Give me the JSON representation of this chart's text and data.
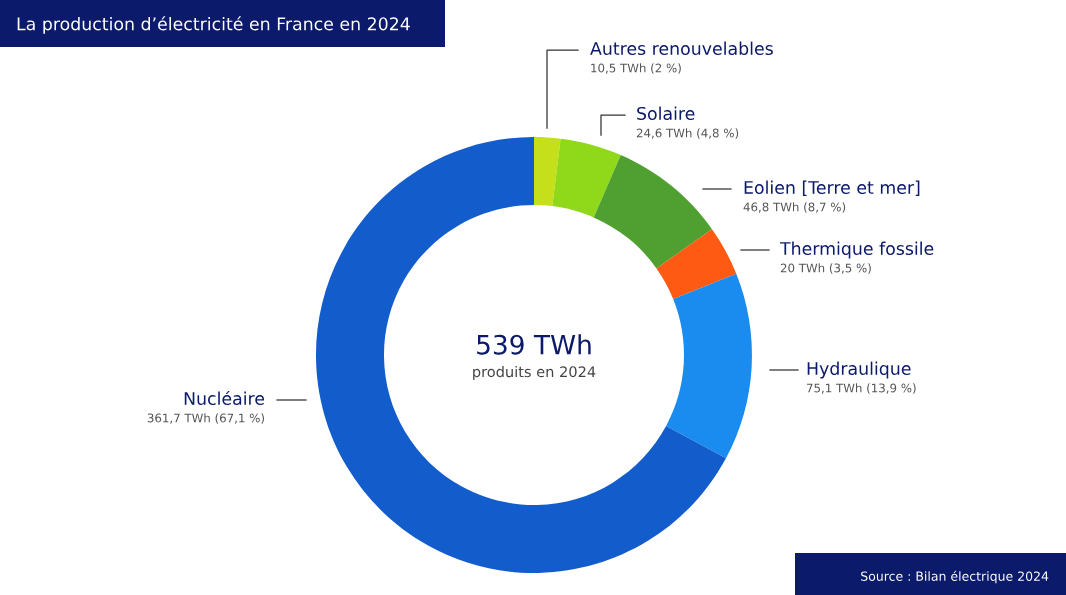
{
  "chart_data": {
    "type": "donut",
    "title": "La production d’électricité en France en 2024",
    "categories": [
      "Autres renouvelables",
      "Solaire",
      "Eolien [Terre et mer]",
      "Thermique fossile",
      "Hydraulique",
      "Nucléaire"
    ],
    "values": [
      10.5,
      24.6,
      46.8,
      20,
      75.1,
      361.7
    ],
    "colors": [
      "#c5e01a",
      "#8fd81a",
      "#4fa030",
      "#ff5a14",
      "#1a8cf0",
      "#135ccc"
    ],
    "value_labels": [
      "10,5 TWh (2 %)",
      "24,6 TWh (4,8 %)",
      "46,8 TWh (8,7 %)",
      "20 TWh (3,5 %)",
      "75,1 TWh (13,9 %)",
      "361,7 TWh (67,1 %)"
    ],
    "annotations": [
      "539 TWh",
      "produits en 2024",
      "Source : Bilan électrique 2024"
    ],
    "legend": false
  }
}
